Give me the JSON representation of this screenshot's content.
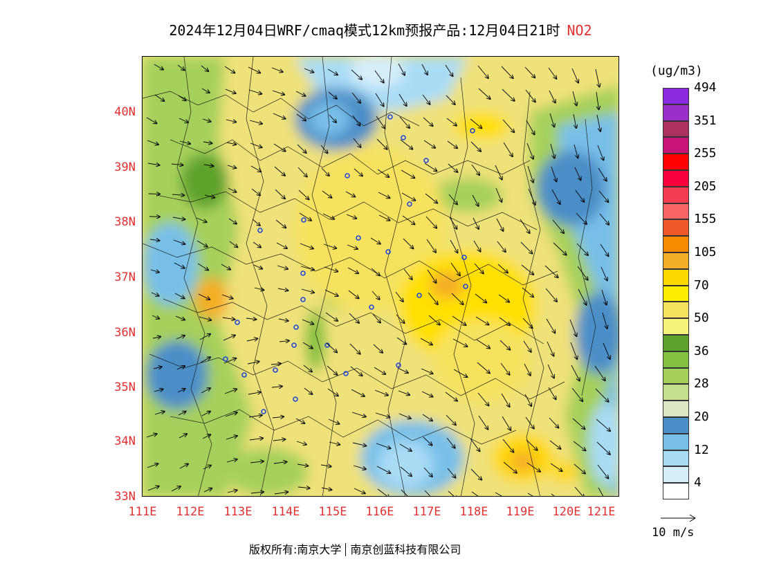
{
  "title": {
    "main": "2024年12月04日WRF/cmaq模式12km预报产品:12月04日21时",
    "species": "NO2"
  },
  "map": {
    "lat_labels": [
      "40N",
      "39N",
      "38N",
      "37N",
      "36N",
      "35N",
      "34N",
      "33N"
    ],
    "lon_labels": [
      "111E",
      "112E",
      "113E",
      "114E",
      "115E",
      "116E",
      "117E",
      "118E",
      "119E",
      "120E",
      "121E"
    ]
  },
  "colorbar": {
    "unit": "(ug/m3)",
    "colors": [
      "#ffffff",
      "#d6eefa",
      "#a9dbf5",
      "#78bfe8",
      "#4b8ec8",
      "#dde6c4",
      "#c4e08c",
      "#a6d05c",
      "#84c040",
      "#5ea32c",
      "#f6f47a",
      "#f7e260",
      "#ffee00",
      "#ffd800",
      "#f5ae28",
      "#f78a00",
      "#ef5a28",
      "#f86464",
      "#f23c50",
      "#f8003c",
      "#ff0000",
      "#c81478",
      "#ac3060",
      "#9a30c8",
      "#8a2be2"
    ],
    "labels": [
      "4",
      "12",
      "20",
      "28",
      "36",
      "50",
      "70",
      "105",
      "155",
      "205",
      "255",
      "351",
      "494"
    ]
  },
  "vector_legend": "10 m/s",
  "footer": {
    "copyright": "版权所有:南京大学",
    "company": "南京创蓝科技有限公司"
  }
}
